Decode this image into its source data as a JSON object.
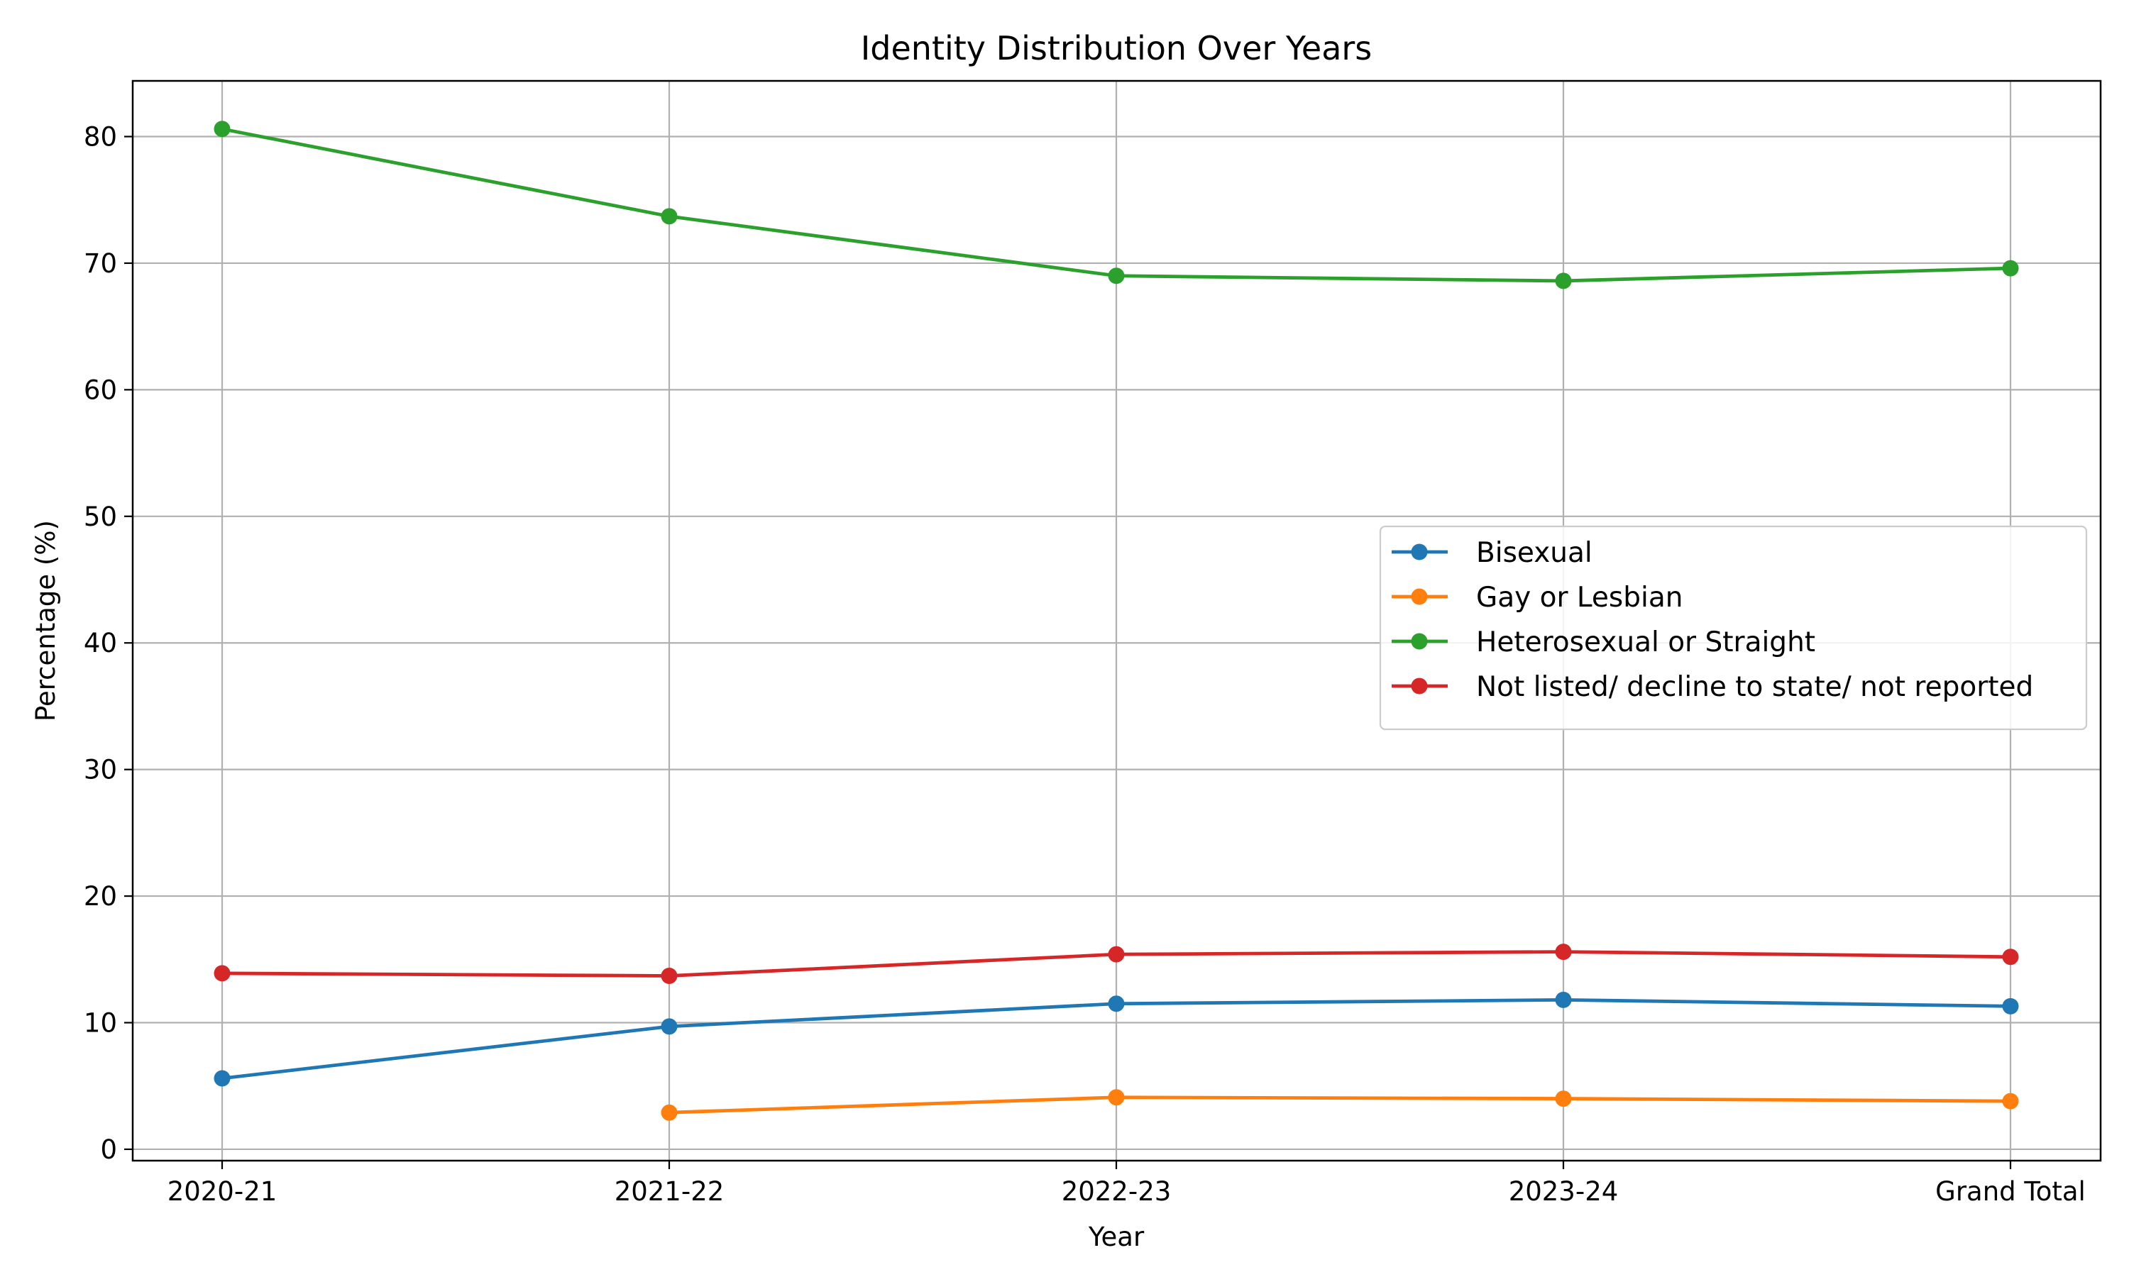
{
  "chart_data": {
    "type": "line",
    "title": "Identity Distribution Over Years",
    "xlabel": "Year",
    "ylabel": "Percentage (%)",
    "categories": [
      "2020-21",
      "2021-22",
      "2022-23",
      "2023-24",
      "Grand Total"
    ],
    "ylim": [
      -0.9,
      84.4
    ],
    "yticks": [
      0,
      10,
      20,
      30,
      40,
      50,
      60,
      70,
      80
    ],
    "grid": true,
    "legend_position": "center-right",
    "series": [
      {
        "name": "Bisexual",
        "color": "#1f77b4",
        "values": [
          5.6,
          9.7,
          11.5,
          11.8,
          11.3
        ]
      },
      {
        "name": "Gay or Lesbian",
        "color": "#ff7f0e",
        "values": [
          null,
          2.9,
          4.1,
          4.0,
          3.8
        ]
      },
      {
        "name": "Heterosexual or Straight",
        "color": "#2ca02c",
        "values": [
          80.6,
          73.7,
          69.0,
          68.6,
          69.6
        ]
      },
      {
        "name": "Not listed/ decline to state/ not reported",
        "color": "#d62728",
        "values": [
          13.9,
          13.7,
          15.4,
          15.6,
          15.2
        ]
      }
    ]
  }
}
